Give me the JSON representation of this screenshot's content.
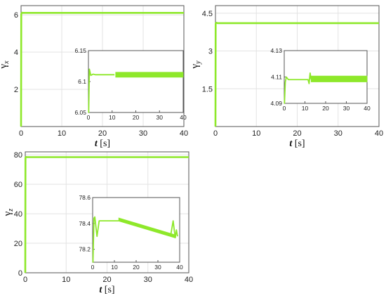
{
  "theme": {
    "line_color": "#8ee82a",
    "grid_color": "#e3e3e3",
    "axis_color": "#555555"
  },
  "chart_data": [
    {
      "type": "line",
      "ylabel_symbol": "γ",
      "ylabel_sub": "x",
      "xlabel_var": "t",
      "xlabel_unit": "[s]",
      "xlim": [
        0,
        40
      ],
      "ylim": [
        0,
        6.5
      ],
      "grid": true,
      "xticks": [
        "0",
        "10",
        "20",
        "30",
        "40"
      ],
      "yticks": [
        {
          "v": 2,
          "label": "2"
        },
        {
          "v": 4,
          "label": "4"
        },
        {
          "v": 6,
          "label": "6"
        }
      ],
      "series": [
        {
          "x": [
            0,
            0.05,
            0.2,
            0.5,
            1,
            40
          ],
          "y": [
            0,
            6.05,
            6.12,
            6.11,
            6.11,
            6.11
          ]
        }
      ],
      "inset": {
        "xlim": [
          0,
          40
        ],
        "ylim": [
          6.05,
          6.15
        ],
        "xticks": [
          "0",
          "10",
          "20",
          "30",
          "40"
        ],
        "yticks": [
          {
            "v": 6.05,
            "label": "6.05"
          },
          {
            "v": 6.1,
            "label": "6.1"
          },
          {
            "v": 6.15,
            "label": "6.15"
          }
        ],
        "series": [
          {
            "x": [
              0,
              0.1,
              0.4,
              1,
              2,
              3,
              5,
              8,
              11
            ],
            "y": [
              6.05,
              6.05,
              6.12,
              6.11,
              6.112,
              6.111,
              6.111,
              6.111,
              6.111
            ]
          }
        ],
        "band": {
          "x": [
            11.5,
            40
          ],
          "center": 6.111,
          "half_width": 0.004
        }
      }
    },
    {
      "type": "line",
      "ylabel_symbol": "γ",
      "ylabel_sub": "y",
      "xlabel_var": "t",
      "xlabel_unit": "[s]",
      "xlim": [
        0,
        40
      ],
      "ylim": [
        0,
        4.8
      ],
      "grid": true,
      "xticks": [
        "0",
        "10",
        "20",
        "30",
        "40"
      ],
      "yticks": [
        {
          "v": 1.5,
          "label": "1.5"
        },
        {
          "v": 3,
          "label": "3"
        },
        {
          "v": 4.5,
          "label": "4.5"
        }
      ],
      "series": [
        {
          "x": [
            0,
            0.05,
            0.2,
            0.5,
            1,
            40
          ],
          "y": [
            0,
            4.09,
            4.12,
            4.105,
            4.105,
            4.105
          ]
        }
      ],
      "inset": {
        "xlim": [
          0,
          40
        ],
        "ylim": [
          4.09,
          4.13
        ],
        "xticks": [
          "0",
          "10",
          "20",
          "30",
          "40"
        ],
        "yticks": [
          {
            "v": 4.09,
            "label": "4.09"
          },
          {
            "v": 4.11,
            "label": "4.11"
          },
          {
            "v": 4.13,
            "label": "4.13"
          }
        ],
        "series": [
          {
            "x": [
              0,
              0.1,
              0.5,
              1,
              2,
              3,
              5,
              8,
              10,
              11.5,
              12,
              12.5,
              13
            ],
            "y": [
              4.09,
              4.09,
              4.106,
              4.11,
              4.108,
              4.108,
              4.108,
              4.108,
              4.108,
              4.108,
              4.105,
              4.113,
              4.108
            ]
          }
        ],
        "band": {
          "x": [
            13,
            40
          ],
          "center": 4.1085,
          "half_width": 0.0022
        }
      }
    },
    {
      "type": "line",
      "ylabel_symbol": "γ",
      "ylabel_sub": "z",
      "xlabel_var": "t",
      "xlabel_unit": "[s]",
      "xlim": [
        0,
        40
      ],
      "ylim": [
        0,
        82
      ],
      "grid": true,
      "xticks": [
        "0",
        "10",
        "20",
        "30",
        "40"
      ],
      "yticks": [
        {
          "v": 0,
          "label": "0"
        },
        {
          "v": 20,
          "label": "20"
        },
        {
          "v": 40,
          "label": "40"
        },
        {
          "v": 60,
          "label": "60"
        },
        {
          "v": 80,
          "label": "80"
        }
      ],
      "series": [
        {
          "x": [
            0,
            0.05,
            0.2,
            0.5,
            1,
            40
          ],
          "y": [
            0,
            78.2,
            78.5,
            78.42,
            78.42,
            78.42
          ]
        }
      ],
      "inset": {
        "xlim": [
          0,
          40
        ],
        "ylim": [
          78.1,
          78.6
        ],
        "xticks": [
          "0",
          "10",
          "20",
          "30",
          "40"
        ],
        "yticks": [
          {
            "v": 78.2,
            "label": "78.2"
          },
          {
            "v": 78.4,
            "label": "78.4"
          },
          {
            "v": 78.6,
            "label": "78.6"
          }
        ],
        "series": [
          {
            "x": [
              0,
              0.15,
              0.6,
              1,
              2,
              3,
              4,
              6,
              9,
              12
            ],
            "y": [
              78.1,
              78.1,
              78.44,
              78.45,
              78.3,
              78.42,
              78.42,
              78.42,
              78.42,
              78.42
            ]
          },
          {
            "x": [
              36,
              37,
              37.5,
              38,
              38.5,
              39
            ],
            "y": [
              78.32,
              78.42,
              78.35,
              78.29,
              78.35,
              78.3
            ]
          }
        ],
        "band": {
          "x": [
            12,
            38
          ],
          "center_start": 78.43,
          "center_end": 78.3,
          "half_width": 0.012
        }
      }
    }
  ]
}
